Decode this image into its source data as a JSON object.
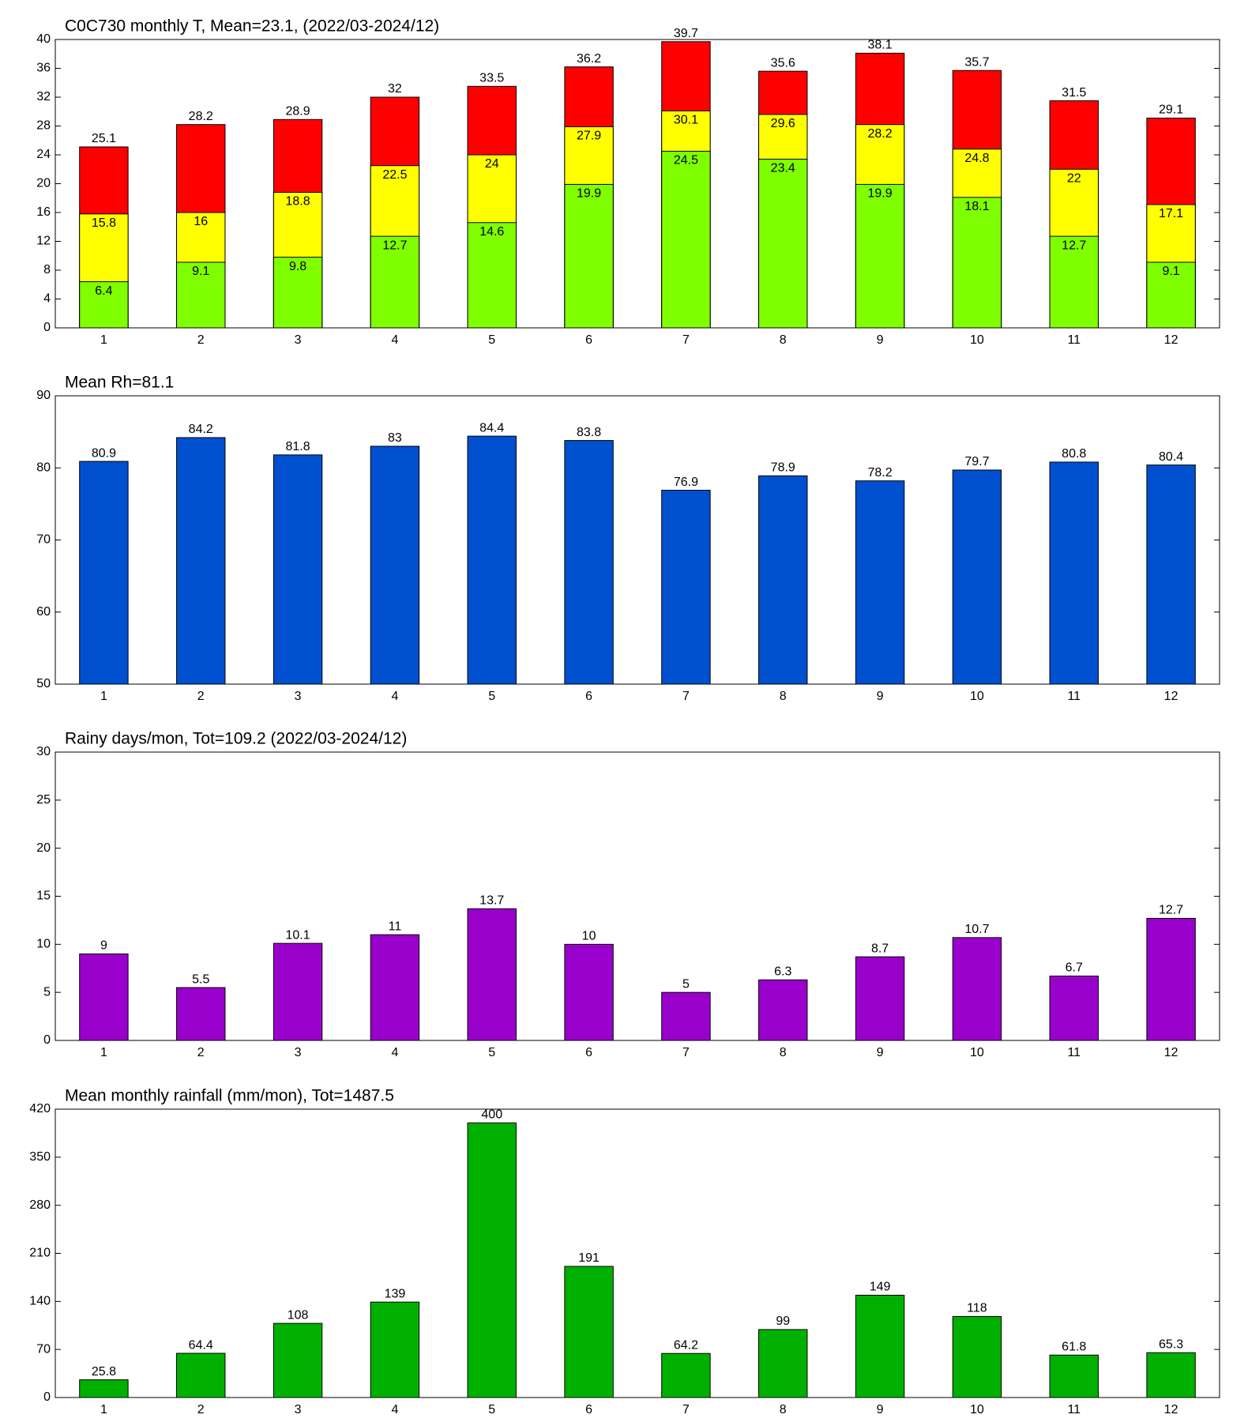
{
  "chart_data": [
    {
      "type": "bar",
      "title": "C0C730 monthly T, Mean=23.1, (2022/03-2024/12)",
      "categories": [
        "1",
        "2",
        "3",
        "4",
        "5",
        "6",
        "7",
        "8",
        "9",
        "10",
        "11",
        "12"
      ],
      "series": [
        {
          "color": "#80ff00",
          "values": [
            6.4,
            9.1,
            9.8,
            12.7,
            14.6,
            19.9,
            24.5,
            23.4,
            19.9,
            18.1,
            12.7,
            9.1
          ]
        },
        {
          "color": "#ffff00",
          "values": [
            15.8,
            16,
            18.8,
            22.5,
            24,
            27.9,
            30.1,
            29.6,
            28.2,
            24.8,
            22,
            17.1
          ]
        },
        {
          "color": "#ff0000",
          "values": [
            25.1,
            28.2,
            28.9,
            32,
            33.5,
            36.2,
            39.7,
            35.6,
            38.1,
            35.7,
            31.5,
            29.1
          ]
        }
      ],
      "ylim": [
        0,
        40
      ],
      "yticks": [
        0,
        4,
        8,
        12,
        16,
        20,
        24,
        28,
        32,
        36,
        40
      ]
    },
    {
      "type": "bar",
      "title": "Mean Rh=81.1",
      "categories": [
        "1",
        "2",
        "3",
        "4",
        "5",
        "6",
        "7",
        "8",
        "9",
        "10",
        "11",
        "12"
      ],
      "series": [
        {
          "color": "#0050d0",
          "values": [
            80.9,
            84.2,
            81.8,
            83,
            84.4,
            83.8,
            76.9,
            78.9,
            78.2,
            79.7,
            80.8,
            80.4
          ]
        }
      ],
      "ylim": [
        50,
        90
      ],
      "yticks": [
        50,
        60,
        70,
        80,
        90
      ]
    },
    {
      "type": "bar",
      "title": "Rainy days/mon, Tot=109.2 (2022/03-2024/12)",
      "categories": [
        "1",
        "2",
        "3",
        "4",
        "5",
        "6",
        "7",
        "8",
        "9",
        "10",
        "11",
        "12"
      ],
      "series": [
        {
          "color": "#9900cc",
          "values": [
            9,
            5.5,
            10.1,
            11,
            13.7,
            10,
            5,
            6.3,
            8.7,
            10.7,
            6.7,
            12.7
          ]
        }
      ],
      "ylim": [
        0,
        30
      ],
      "yticks": [
        0,
        5,
        10,
        15,
        20,
        25,
        30
      ]
    },
    {
      "type": "bar",
      "title": "Mean monthly rainfall (mm/mon), Tot=1487.5",
      "categories": [
        "1",
        "2",
        "3",
        "4",
        "5",
        "6",
        "7",
        "8",
        "9",
        "10",
        "11",
        "12"
      ],
      "series": [
        {
          "color": "#00b000",
          "values": [
            25.8,
            64.4,
            108,
            139,
            400,
            191,
            64.2,
            99,
            149,
            118,
            61.8,
            65.3
          ]
        }
      ],
      "ylim": [
        0,
        420
      ],
      "yticks": [
        0,
        70,
        140,
        210,
        280,
        350,
        420
      ]
    }
  ]
}
